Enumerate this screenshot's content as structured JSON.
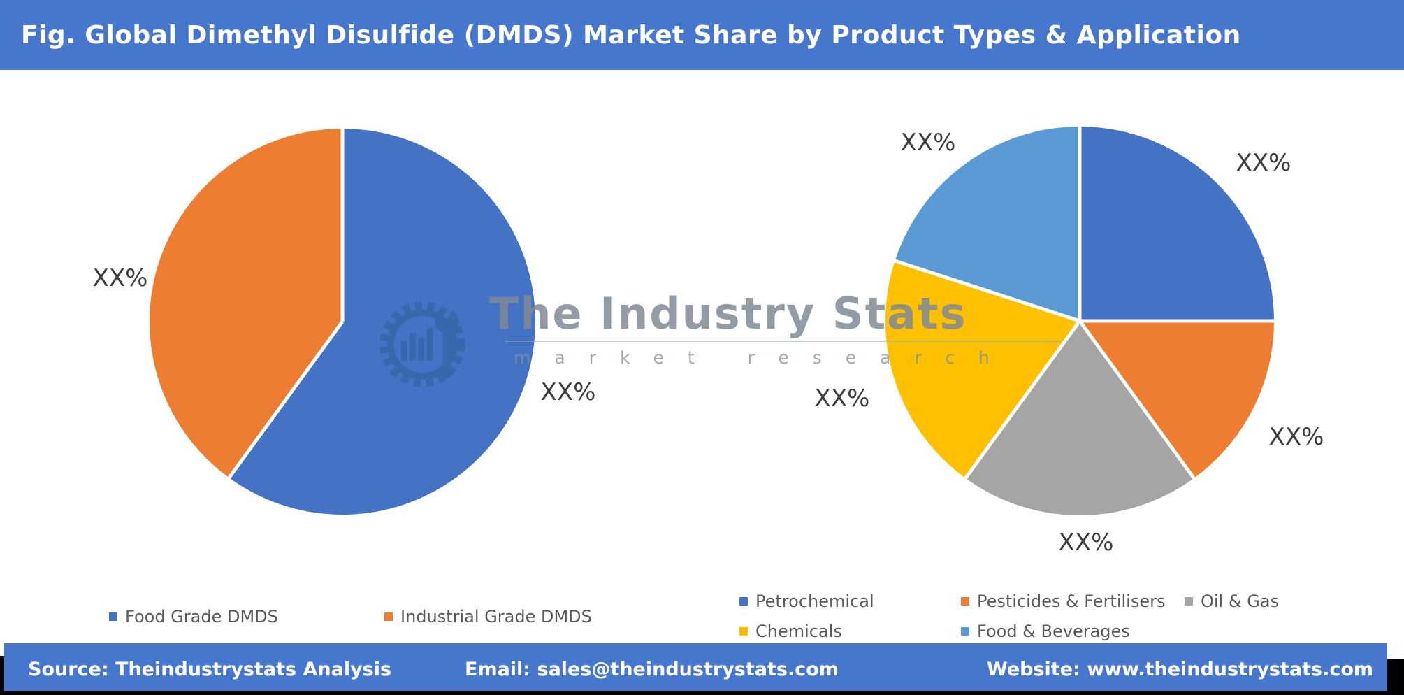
{
  "header": {
    "title": "Fig. Global Dimethyl Disulfide (DMDS) Market Share by Product Types & Application"
  },
  "colors": {
    "header_bar": "#4777CD",
    "footer_bar": "#4777CD",
    "edge": "#000000",
    "slice_label_text": "#3D3D3D",
    "legend_text": "#595959",
    "watermark_steel": "#31639C"
  },
  "watermark": {
    "brand": "The Industry Stats",
    "subtitle": "market research",
    "icon": "gear-wrench-industry-icon"
  },
  "chart_data": [
    {
      "type": "pie",
      "name": "Product Types",
      "legend_position": "bottom",
      "data_labels": "percent-placeholders",
      "series": [
        {
          "name": "Food Grade DMDS",
          "display_label": "XX%",
          "value": 60,
          "color": "#4472C4"
        },
        {
          "name": "Industrial Grade DMDS",
          "display_label": "XX%",
          "value": 40,
          "color": "#ED7D31"
        }
      ]
    },
    {
      "type": "pie",
      "name": "Application",
      "legend_position": "bottom",
      "data_labels": "percent-placeholders",
      "series": [
        {
          "name": "Petrochemical",
          "display_label": "XX%",
          "value": 25,
          "color": "#4472C4"
        },
        {
          "name": "Pesticides & Fertilisers",
          "display_label": "XX%",
          "value": 15,
          "color": "#ED7D31"
        },
        {
          "name": "Oil & Gas",
          "display_label": "XX%",
          "value": 20,
          "color": "#A5A5A5"
        },
        {
          "name": "Chemicals",
          "display_label": "XX%",
          "value": 20,
          "color": "#FFC000"
        },
        {
          "name": "Food & Beverages",
          "display_label": "XX%",
          "value": 20,
          "color": "#5B9BD5"
        }
      ]
    }
  ],
  "footer": {
    "source": "Source: Theindustrystats Analysis",
    "email": "Email: sales@theindustrystats.com",
    "website": "Website: www.theindustrystats.com"
  }
}
